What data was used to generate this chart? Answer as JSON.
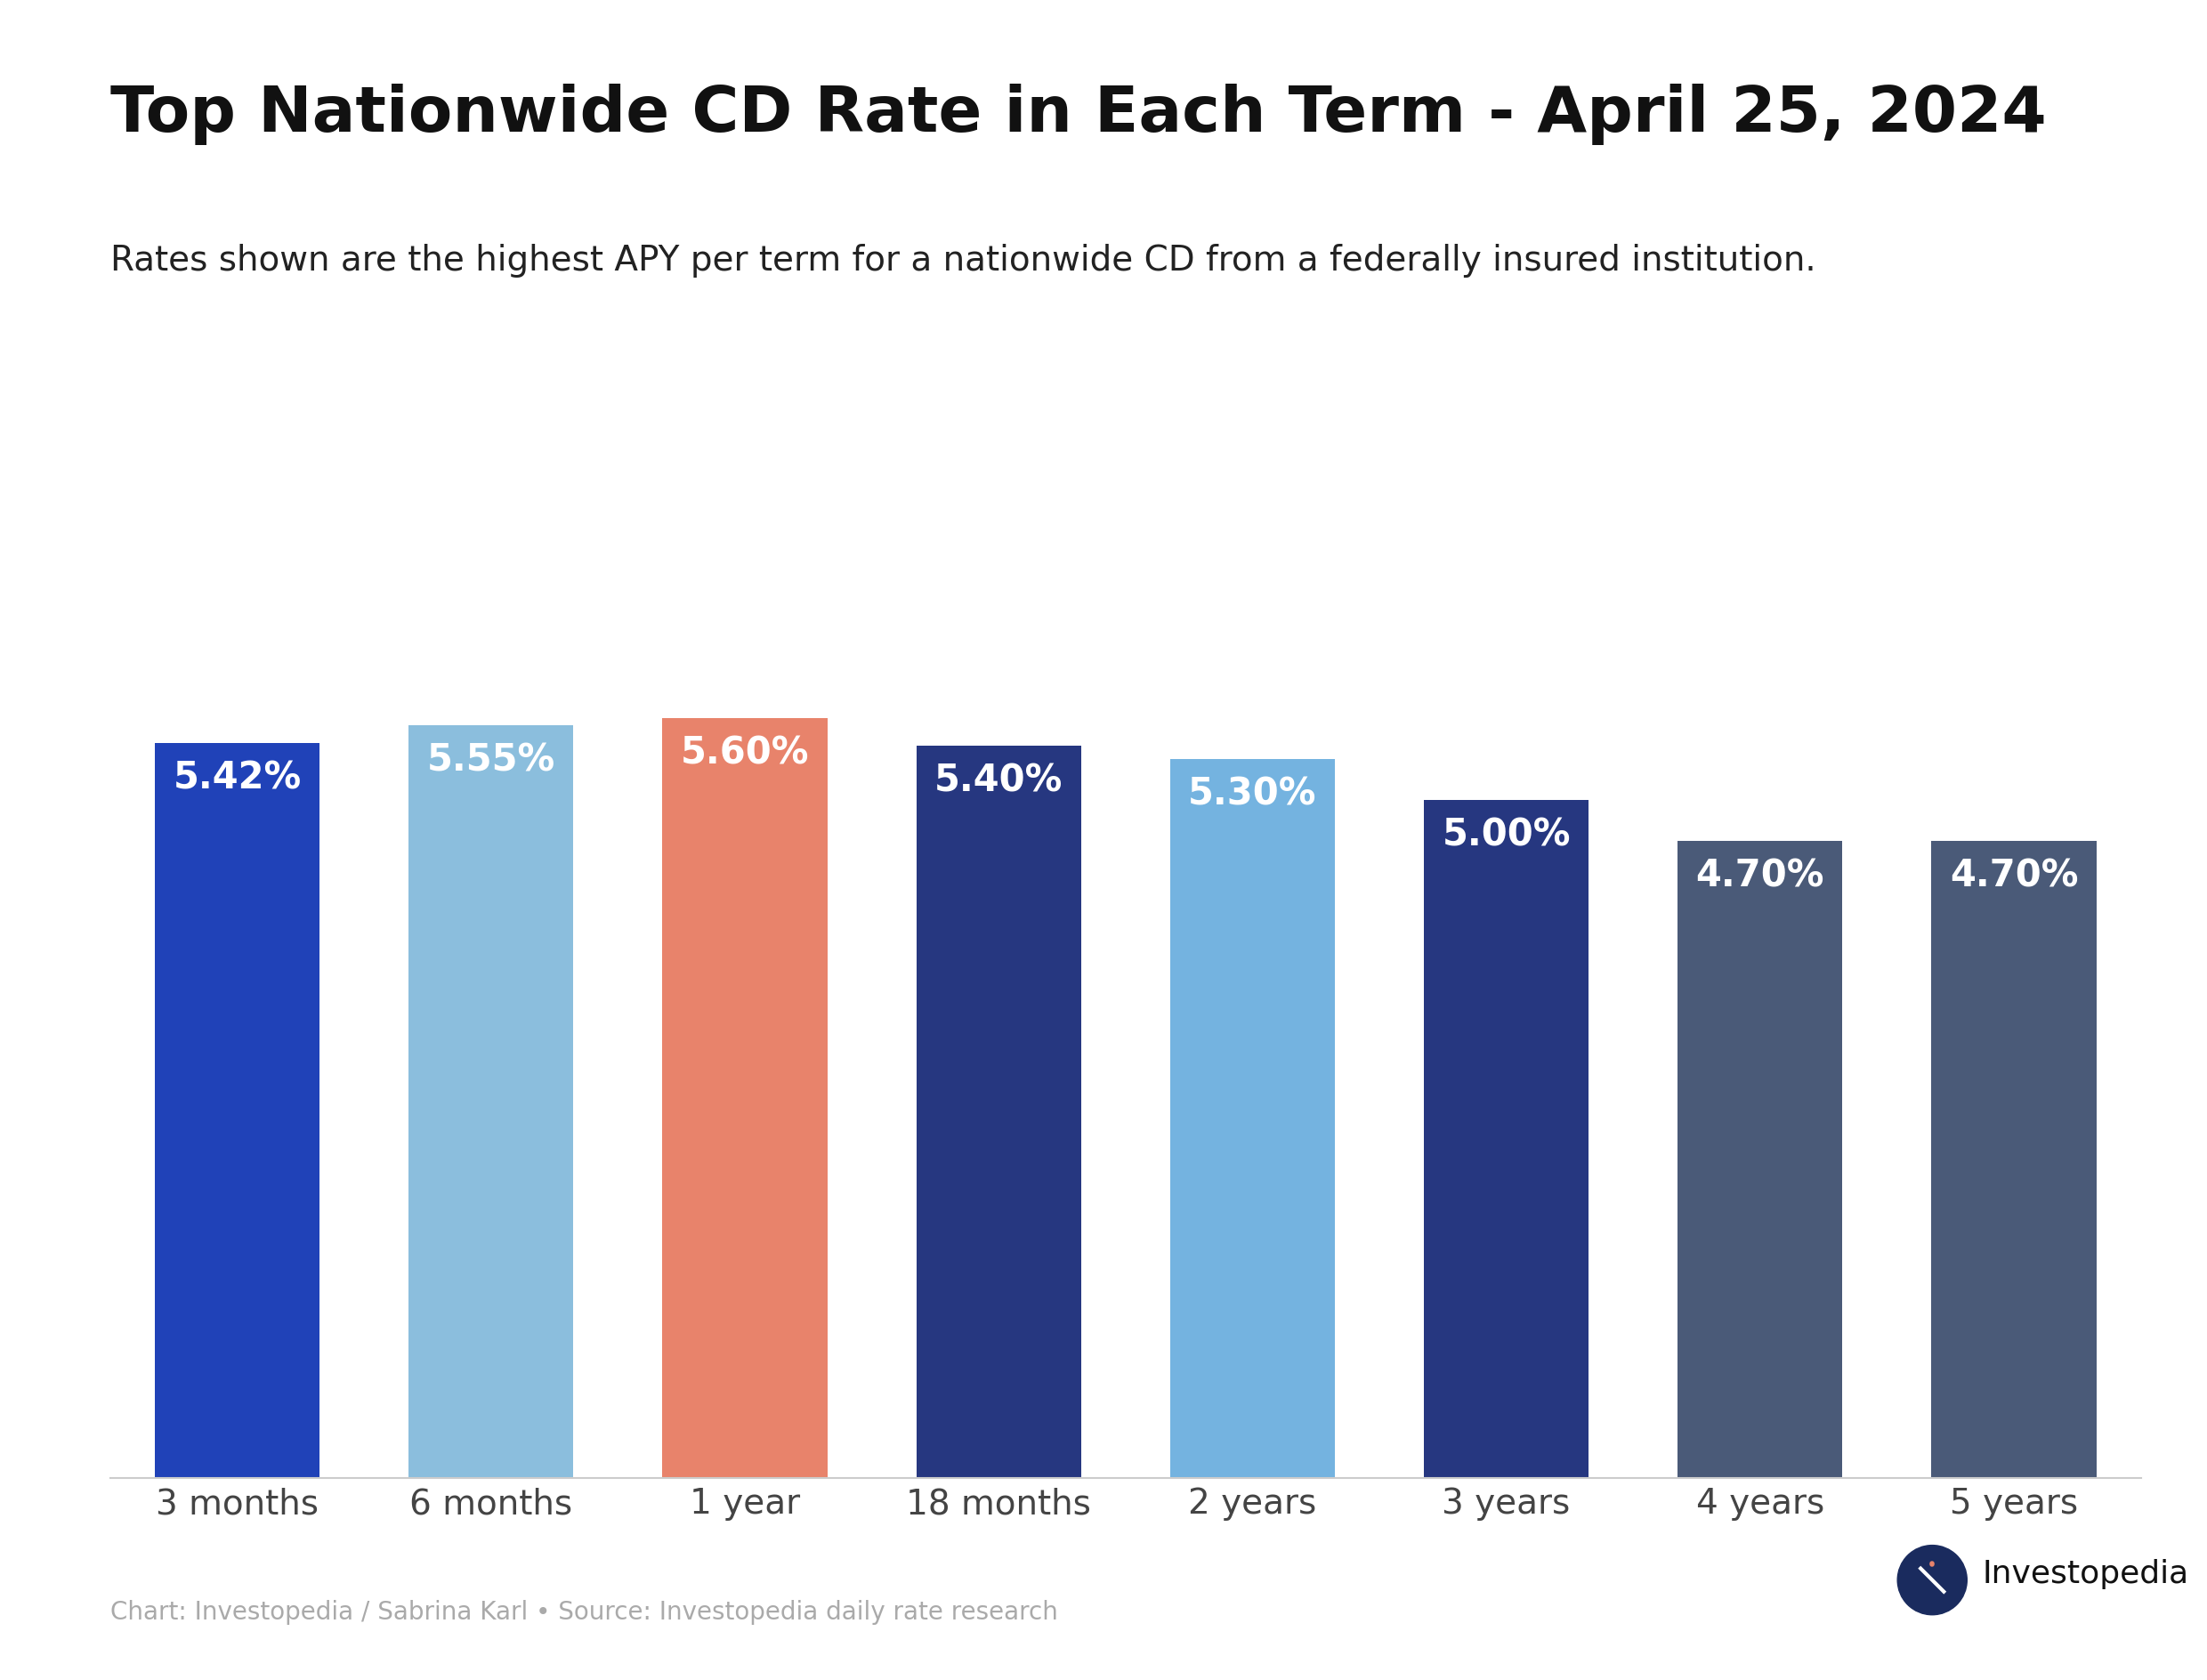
{
  "title": "Top Nationwide CD Rate in Each Term - April 25, 2024",
  "subtitle": "Rates shown are the highest APY per term for a nationwide CD from a federally insured institution.",
  "categories": [
    "3 months",
    "6 months",
    "1 year",
    "18 months",
    "2 years",
    "3 years",
    "4 years",
    "5 years"
  ],
  "values": [
    5.42,
    5.55,
    5.6,
    5.4,
    5.3,
    5.0,
    4.7,
    4.7
  ],
  "labels": [
    "5.42%",
    "5.55%",
    "5.60%",
    "5.40%",
    "5.30%",
    "5.00%",
    "4.70%",
    "4.70%"
  ],
  "bar_colors": [
    "#2042b8",
    "#8bbedd",
    "#e8836b",
    "#263780",
    "#74b3e0",
    "#263780",
    "#4a5a78",
    "#4a5a78"
  ],
  "label_color": "#ffffff",
  "background_color": "#ffffff",
  "title_fontsize": 52,
  "subtitle_fontsize": 28,
  "label_fontsize": 30,
  "tick_fontsize": 28,
  "footer_text": "Chart: Investopedia / Sabrina Karl • Source: Investopedia daily rate research",
  "footer_fontsize": 20,
  "investopedia_text": "Investopedia",
  "investopedia_fontsize": 26,
  "ylim": [
    0,
    7.8
  ],
  "bar_width": 0.65,
  "title_color": "#111111",
  "subtitle_color": "#222222",
  "footer_color": "#aaaaaa",
  "logo_color": "#1a2b5e",
  "xtick_color": "#444444",
  "spine_color": "#cccccc"
}
